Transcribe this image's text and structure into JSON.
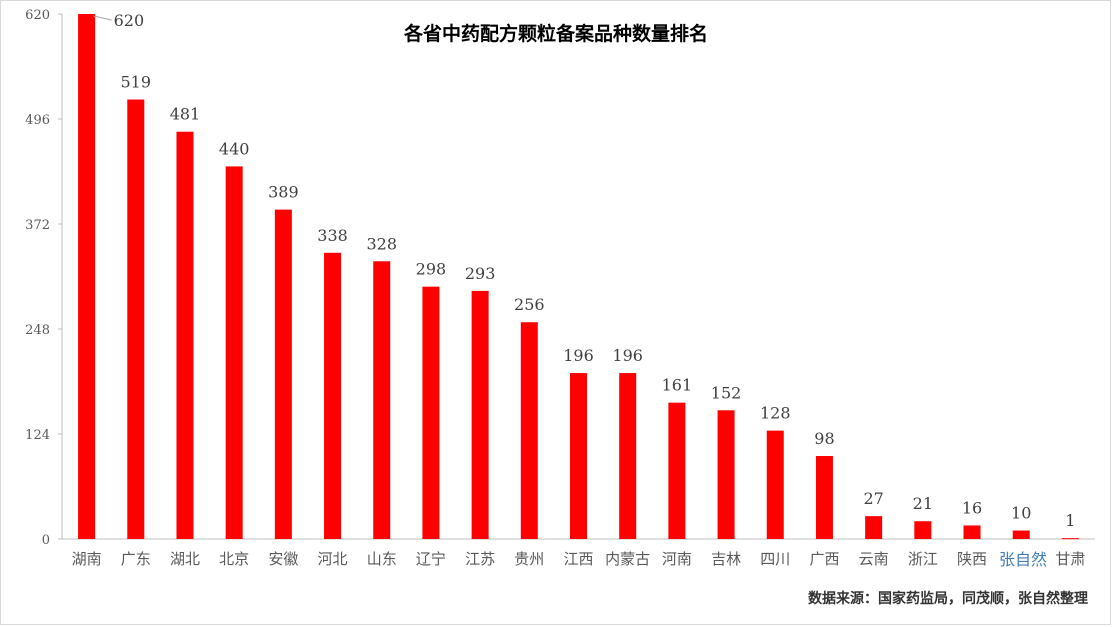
{
  "chart_data": {
    "type": "bar",
    "title": "各省中药配方颗粒备案品种数量排名",
    "categories": [
      "湖南",
      "广东",
      "湖北",
      "北京",
      "安徽",
      "河北",
      "山东",
      "辽宁",
      "江苏",
      "贵州",
      "江西",
      "内蒙古",
      "河南",
      "吉林",
      "四川",
      "广西",
      "云南",
      "浙江",
      "陕西",
      "",
      "甘肃"
    ],
    "values": [
      620,
      519,
      481,
      440,
      389,
      338,
      328,
      298,
      293,
      256,
      196,
      196,
      161,
      152,
      128,
      98,
      27,
      21,
      16,
      10,
      1
    ],
    "yticks": [
      0,
      124,
      248,
      372,
      496,
      620
    ],
    "ylim": [
      0,
      620
    ],
    "xlabel": "",
    "ylabel": "",
    "grid": false,
    "bar_color": "#ff0000"
  },
  "source": "数据来源：国家药监局，同茂顺，张自然整理",
  "watermark": "张自然"
}
